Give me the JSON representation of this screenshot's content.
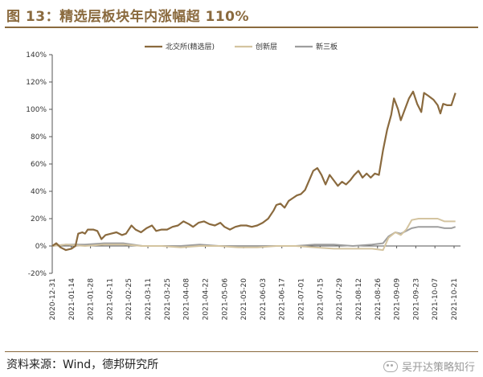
{
  "header": {
    "title": "图 13：精选层板块年内涨幅超 110%"
  },
  "footer": {
    "source": "资料来源：Wind，德邦研究所",
    "watermark": "吴开达策略知行"
  },
  "chart_data": {
    "type": "line",
    "ylim": [
      -20,
      140
    ],
    "y_ticks": [
      -20,
      0,
      20,
      40,
      60,
      80,
      100,
      120,
      140
    ],
    "y_tick_labels": [
      "-20%",
      "0%",
      "20%",
      "40%",
      "60%",
      "80%",
      "100%",
      "120%",
      "140%"
    ],
    "x_tick_labels": [
      "2020-12-31",
      "2021-01-14",
      "2021-01-28",
      "2021-02-11",
      "2021-02-25",
      "2021-03-11",
      "2021-03-25",
      "2021-04-08",
      "2021-04-22",
      "2021-05-06",
      "2021-05-20",
      "2021-06-03",
      "2021-06-17",
      "2021-07-01",
      "2021-07-15",
      "2021-07-29",
      "2021-08-12",
      "2021-08-26",
      "2021-09-09",
      "2021-09-23",
      "2021-10-07",
      "2021-10-21"
    ],
    "legend_position": "top",
    "grid": false,
    "series": [
      {
        "name": "北交所(精选层)",
        "color": "#8a6a3e",
        "points": [
          [
            "2020-12-31",
            0
          ],
          [
            "2021-01-03",
            2
          ],
          [
            "2021-01-06",
            -1
          ],
          [
            "2021-01-10",
            -3
          ],
          [
            "2021-01-14",
            -2
          ],
          [
            "2021-01-17",
            0
          ],
          [
            "2021-01-19",
            9
          ],
          [
            "2021-01-22",
            10
          ],
          [
            "2021-01-24",
            9
          ],
          [
            "2021-01-26",
            12
          ],
          [
            "2021-01-30",
            12
          ],
          [
            "2021-02-02",
            11
          ],
          [
            "2021-02-05",
            5
          ],
          [
            "2021-02-08",
            8
          ],
          [
            "2021-02-12",
            9
          ],
          [
            "2021-02-16",
            10
          ],
          [
            "2021-02-20",
            8
          ],
          [
            "2021-02-23",
            9
          ],
          [
            "2021-02-27",
            15
          ],
          [
            "2021-03-02",
            12
          ],
          [
            "2021-03-06",
            10
          ],
          [
            "2021-03-10",
            13
          ],
          [
            "2021-03-14",
            15
          ],
          [
            "2021-03-17",
            11
          ],
          [
            "2021-03-21",
            12
          ],
          [
            "2021-03-25",
            12
          ],
          [
            "2021-03-29",
            14
          ],
          [
            "2021-04-02",
            15
          ],
          [
            "2021-04-06",
            18
          ],
          [
            "2021-04-10",
            16
          ],
          [
            "2021-04-13",
            14
          ],
          [
            "2021-04-17",
            17
          ],
          [
            "2021-04-21",
            18
          ],
          [
            "2021-04-25",
            16
          ],
          [
            "2021-04-29",
            15
          ],
          [
            "2021-05-03",
            17
          ],
          [
            "2021-05-06",
            14
          ],
          [
            "2021-05-10",
            12
          ],
          [
            "2021-05-14",
            14
          ],
          [
            "2021-05-18",
            15
          ],
          [
            "2021-05-22",
            15
          ],
          [
            "2021-05-26",
            14
          ],
          [
            "2021-05-30",
            15
          ],
          [
            "2021-06-03",
            17
          ],
          [
            "2021-06-07",
            20
          ],
          [
            "2021-06-11",
            26
          ],
          [
            "2021-06-13",
            30
          ],
          [
            "2021-06-16",
            31
          ],
          [
            "2021-06-19",
            28
          ],
          [
            "2021-06-22",
            33
          ],
          [
            "2021-06-25",
            35
          ],
          [
            "2021-06-28",
            37
          ],
          [
            "2021-07-01",
            38
          ],
          [
            "2021-07-04",
            41
          ],
          [
            "2021-07-07",
            48
          ],
          [
            "2021-07-10",
            55
          ],
          [
            "2021-07-13",
            57
          ],
          [
            "2021-07-16",
            52
          ],
          [
            "2021-07-19",
            45
          ],
          [
            "2021-07-22",
            52
          ],
          [
            "2021-07-25",
            48
          ],
          [
            "2021-07-28",
            44
          ],
          [
            "2021-07-31",
            47
          ],
          [
            "2021-08-03",
            45
          ],
          [
            "2021-08-06",
            48
          ],
          [
            "2021-08-09",
            52
          ],
          [
            "2021-08-12",
            55
          ],
          [
            "2021-08-15",
            50
          ],
          [
            "2021-08-18",
            53
          ],
          [
            "2021-08-21",
            50
          ],
          [
            "2021-08-24",
            53
          ],
          [
            "2021-08-27",
            52
          ],
          [
            "2021-08-30",
            70
          ],
          [
            "2021-09-02",
            85
          ],
          [
            "2021-09-05",
            96
          ],
          [
            "2021-09-07",
            108
          ],
          [
            "2021-09-10",
            100
          ],
          [
            "2021-09-12",
            92
          ],
          [
            "2021-09-15",
            100
          ],
          [
            "2021-09-18",
            108
          ],
          [
            "2021-09-21",
            113
          ],
          [
            "2021-09-24",
            104
          ],
          [
            "2021-09-27",
            98
          ],
          [
            "2021-09-29",
            112
          ],
          [
            "2021-10-02",
            110
          ],
          [
            "2021-10-06",
            107
          ],
          [
            "2021-10-09",
            103
          ],
          [
            "2021-10-11",
            97
          ],
          [
            "2021-10-13",
            104
          ],
          [
            "2021-10-16",
            103
          ],
          [
            "2021-10-19",
            103
          ],
          [
            "2021-10-22",
            112
          ]
        ]
      },
      {
        "name": "创新层",
        "color": "#d4c4a0",
        "points": [
          [
            "2020-12-31",
            0
          ],
          [
            "2021-01-10",
            1
          ],
          [
            "2021-01-24",
            0
          ],
          [
            "2021-02-07",
            1
          ],
          [
            "2021-02-21",
            1
          ],
          [
            "2021-03-07",
            0
          ],
          [
            "2021-03-21",
            0
          ],
          [
            "2021-04-04",
            -1
          ],
          [
            "2021-04-18",
            0
          ],
          [
            "2021-05-02",
            0
          ],
          [
            "2021-05-16",
            -1
          ],
          [
            "2021-05-30",
            -1
          ],
          [
            "2021-06-13",
            0
          ],
          [
            "2021-06-27",
            0
          ],
          [
            "2021-07-11",
            -1
          ],
          [
            "2021-07-25",
            -2
          ],
          [
            "2021-08-08",
            -2
          ],
          [
            "2021-08-22",
            -2
          ],
          [
            "2021-08-30",
            -3
          ],
          [
            "2021-09-03",
            6
          ],
          [
            "2021-09-08",
            10
          ],
          [
            "2021-09-12",
            8
          ],
          [
            "2021-09-16",
            12
          ],
          [
            "2021-09-20",
            19
          ],
          [
            "2021-09-25",
            20
          ],
          [
            "2021-10-02",
            20
          ],
          [
            "2021-10-09",
            20
          ],
          [
            "2021-10-14",
            18
          ],
          [
            "2021-10-19",
            18
          ],
          [
            "2021-10-22",
            18
          ]
        ]
      },
      {
        "name": "新三板",
        "color": "#9e9e9e",
        "points": [
          [
            "2020-12-31",
            0
          ],
          [
            "2021-01-10",
            1
          ],
          [
            "2021-01-24",
            1
          ],
          [
            "2021-02-07",
            2
          ],
          [
            "2021-02-21",
            2
          ],
          [
            "2021-03-07",
            0
          ],
          [
            "2021-03-21",
            0
          ],
          [
            "2021-04-04",
            0
          ],
          [
            "2021-04-18",
            1
          ],
          [
            "2021-05-02",
            0
          ],
          [
            "2021-05-16",
            0
          ],
          [
            "2021-05-30",
            0
          ],
          [
            "2021-06-13",
            0
          ],
          [
            "2021-06-27",
            0
          ],
          [
            "2021-07-11",
            1
          ],
          [
            "2021-07-25",
            1
          ],
          [
            "2021-08-08",
            0
          ],
          [
            "2021-08-22",
            1
          ],
          [
            "2021-08-30",
            2
          ],
          [
            "2021-09-03",
            7
          ],
          [
            "2021-09-08",
            10
          ],
          [
            "2021-09-12",
            9
          ],
          [
            "2021-09-16",
            11
          ],
          [
            "2021-09-20",
            13
          ],
          [
            "2021-09-25",
            14
          ],
          [
            "2021-10-02",
            14
          ],
          [
            "2021-10-09",
            14
          ],
          [
            "2021-10-14",
            13
          ],
          [
            "2021-10-19",
            13
          ],
          [
            "2021-10-22",
            14
          ]
        ]
      }
    ]
  }
}
